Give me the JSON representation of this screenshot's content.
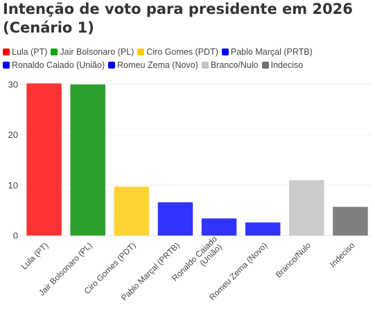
{
  "title_line1": "Intenção de voto para presidente em 2026",
  "title_line2": "(Cenário 1)",
  "chart_data": {
    "type": "bar",
    "title": "Intenção de voto para presidente em 2026 (Cenário 1)",
    "categories": [
      "Lula (PT)",
      "Jair Bolsonaro (PL)",
      "Ciro Gomes (PDT)",
      "Pablo Marçal (PRTB)",
      "Ronaldo Caiado (União)",
      "Romeu Zema (Novo)",
      "Branco/Nulo",
      "Indeciso"
    ],
    "x_tick_labels": [
      [
        "Lula (PT)"
      ],
      [
        "Jair Bolsonaro (PL)"
      ],
      [
        "Ciro Gomes (PDT)"
      ],
      [
        "Pablo Marçal (PRTB)"
      ],
      [
        "Ronaldo Caiado",
        "(União)"
      ],
      [
        "Romeu Zema (Novo)"
      ],
      [
        "Branco/Nulo"
      ],
      [
        "Indeciso"
      ]
    ],
    "values": [
      30.2,
      30.0,
      9.7,
      6.6,
      3.4,
      2.6,
      11.0,
      5.7
    ],
    "colors": [
      "#ff3333",
      "#2ca02c",
      "#ffd333",
      "#3333ff",
      "#3333ff",
      "#3333ff",
      "#cccccc",
      "#7f7f7f"
    ],
    "ylim": [
      0,
      33
    ],
    "yticks": [
      0,
      10,
      20,
      30
    ],
    "grid": true,
    "legend_position": "top",
    "xlabel": "",
    "ylabel": ""
  },
  "legend_rows": [
    [
      {
        "label": "Lula (PT)",
        "color": "#ff0000"
      },
      {
        "label": "Jair Bolsonaro (PL)",
        "color": "#13a313"
      },
      {
        "label": "Ciro Gomes (PDT)",
        "color": "#ffcc00"
      },
      {
        "label": "Pablo Marçal (PRTB)",
        "color": "#0000ff"
      }
    ],
    [
      {
        "label": "Ronaldo Caiado (União)",
        "color": "#0000ff"
      },
      {
        "label": "Romeu Zema (Novo)",
        "color": "#0000ff"
      },
      {
        "label": "Branco/Nulo",
        "color": "#c2c2c2"
      },
      {
        "label": "Indeciso",
        "color": "#707070"
      }
    ]
  ]
}
